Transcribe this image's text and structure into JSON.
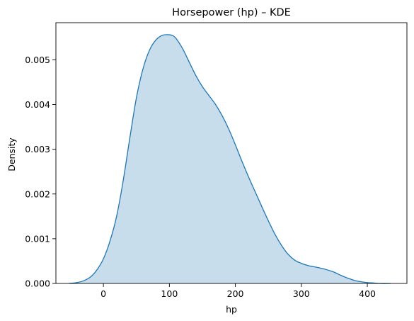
{
  "chart_data": {
    "type": "area",
    "title": "Horsepower (hp) – KDE",
    "xlabel": "hp",
    "ylabel": "Density",
    "xlim": [
      -72,
      460
    ],
    "ylim": [
      0,
      0.00583
    ],
    "xticks": [
      0,
      100,
      200,
      300,
      400
    ],
    "xtick_labels": [
      "0",
      "100",
      "200",
      "300",
      "400"
    ],
    "yticks": [
      0,
      0.001,
      0.002,
      0.003,
      0.004,
      0.005
    ],
    "ytick_labels": [
      "0.000",
      "0.001",
      "0.002",
      "0.003",
      "0.004",
      "0.005"
    ],
    "grid": false,
    "line_color": "#1f77b4",
    "fill_color": "#1f77b4",
    "fill_opacity": 0.25,
    "series": [
      {
        "x": [
          -52,
          -40,
          -30,
          -20,
          -10,
          0,
          10,
          20,
          30,
          40,
          50,
          60,
          70,
          80,
          90,
          100,
          105,
          110,
          120,
          130,
          140,
          150,
          160,
          170,
          180,
          190,
          200,
          210,
          220,
          230,
          240,
          250,
          260,
          270,
          280,
          290,
          300,
          310,
          320,
          330,
          340,
          350,
          360,
          370,
          380,
          390,
          400,
          410,
          420,
          435
        ],
        "y": [
          0.0,
          2e-05,
          6e-05,
          0.00014,
          0.0003,
          0.00055,
          0.00095,
          0.0015,
          0.0023,
          0.00325,
          0.00415,
          0.0048,
          0.00522,
          0.00545,
          0.00555,
          0.00556,
          0.00554,
          0.00548,
          0.00525,
          0.00495,
          0.00465,
          0.0044,
          0.0042,
          0.004,
          0.00375,
          0.00345,
          0.0031,
          0.00273,
          0.00238,
          0.00205,
          0.00172,
          0.0014,
          0.0011,
          0.00085,
          0.00065,
          0.00052,
          0.00045,
          0.0004,
          0.00037,
          0.00034,
          0.0003,
          0.00025,
          0.00018,
          0.00012,
          7e-05,
          4e-05,
          2e-05,
          1e-05,
          0.0,
          0.0
        ]
      }
    ]
  }
}
